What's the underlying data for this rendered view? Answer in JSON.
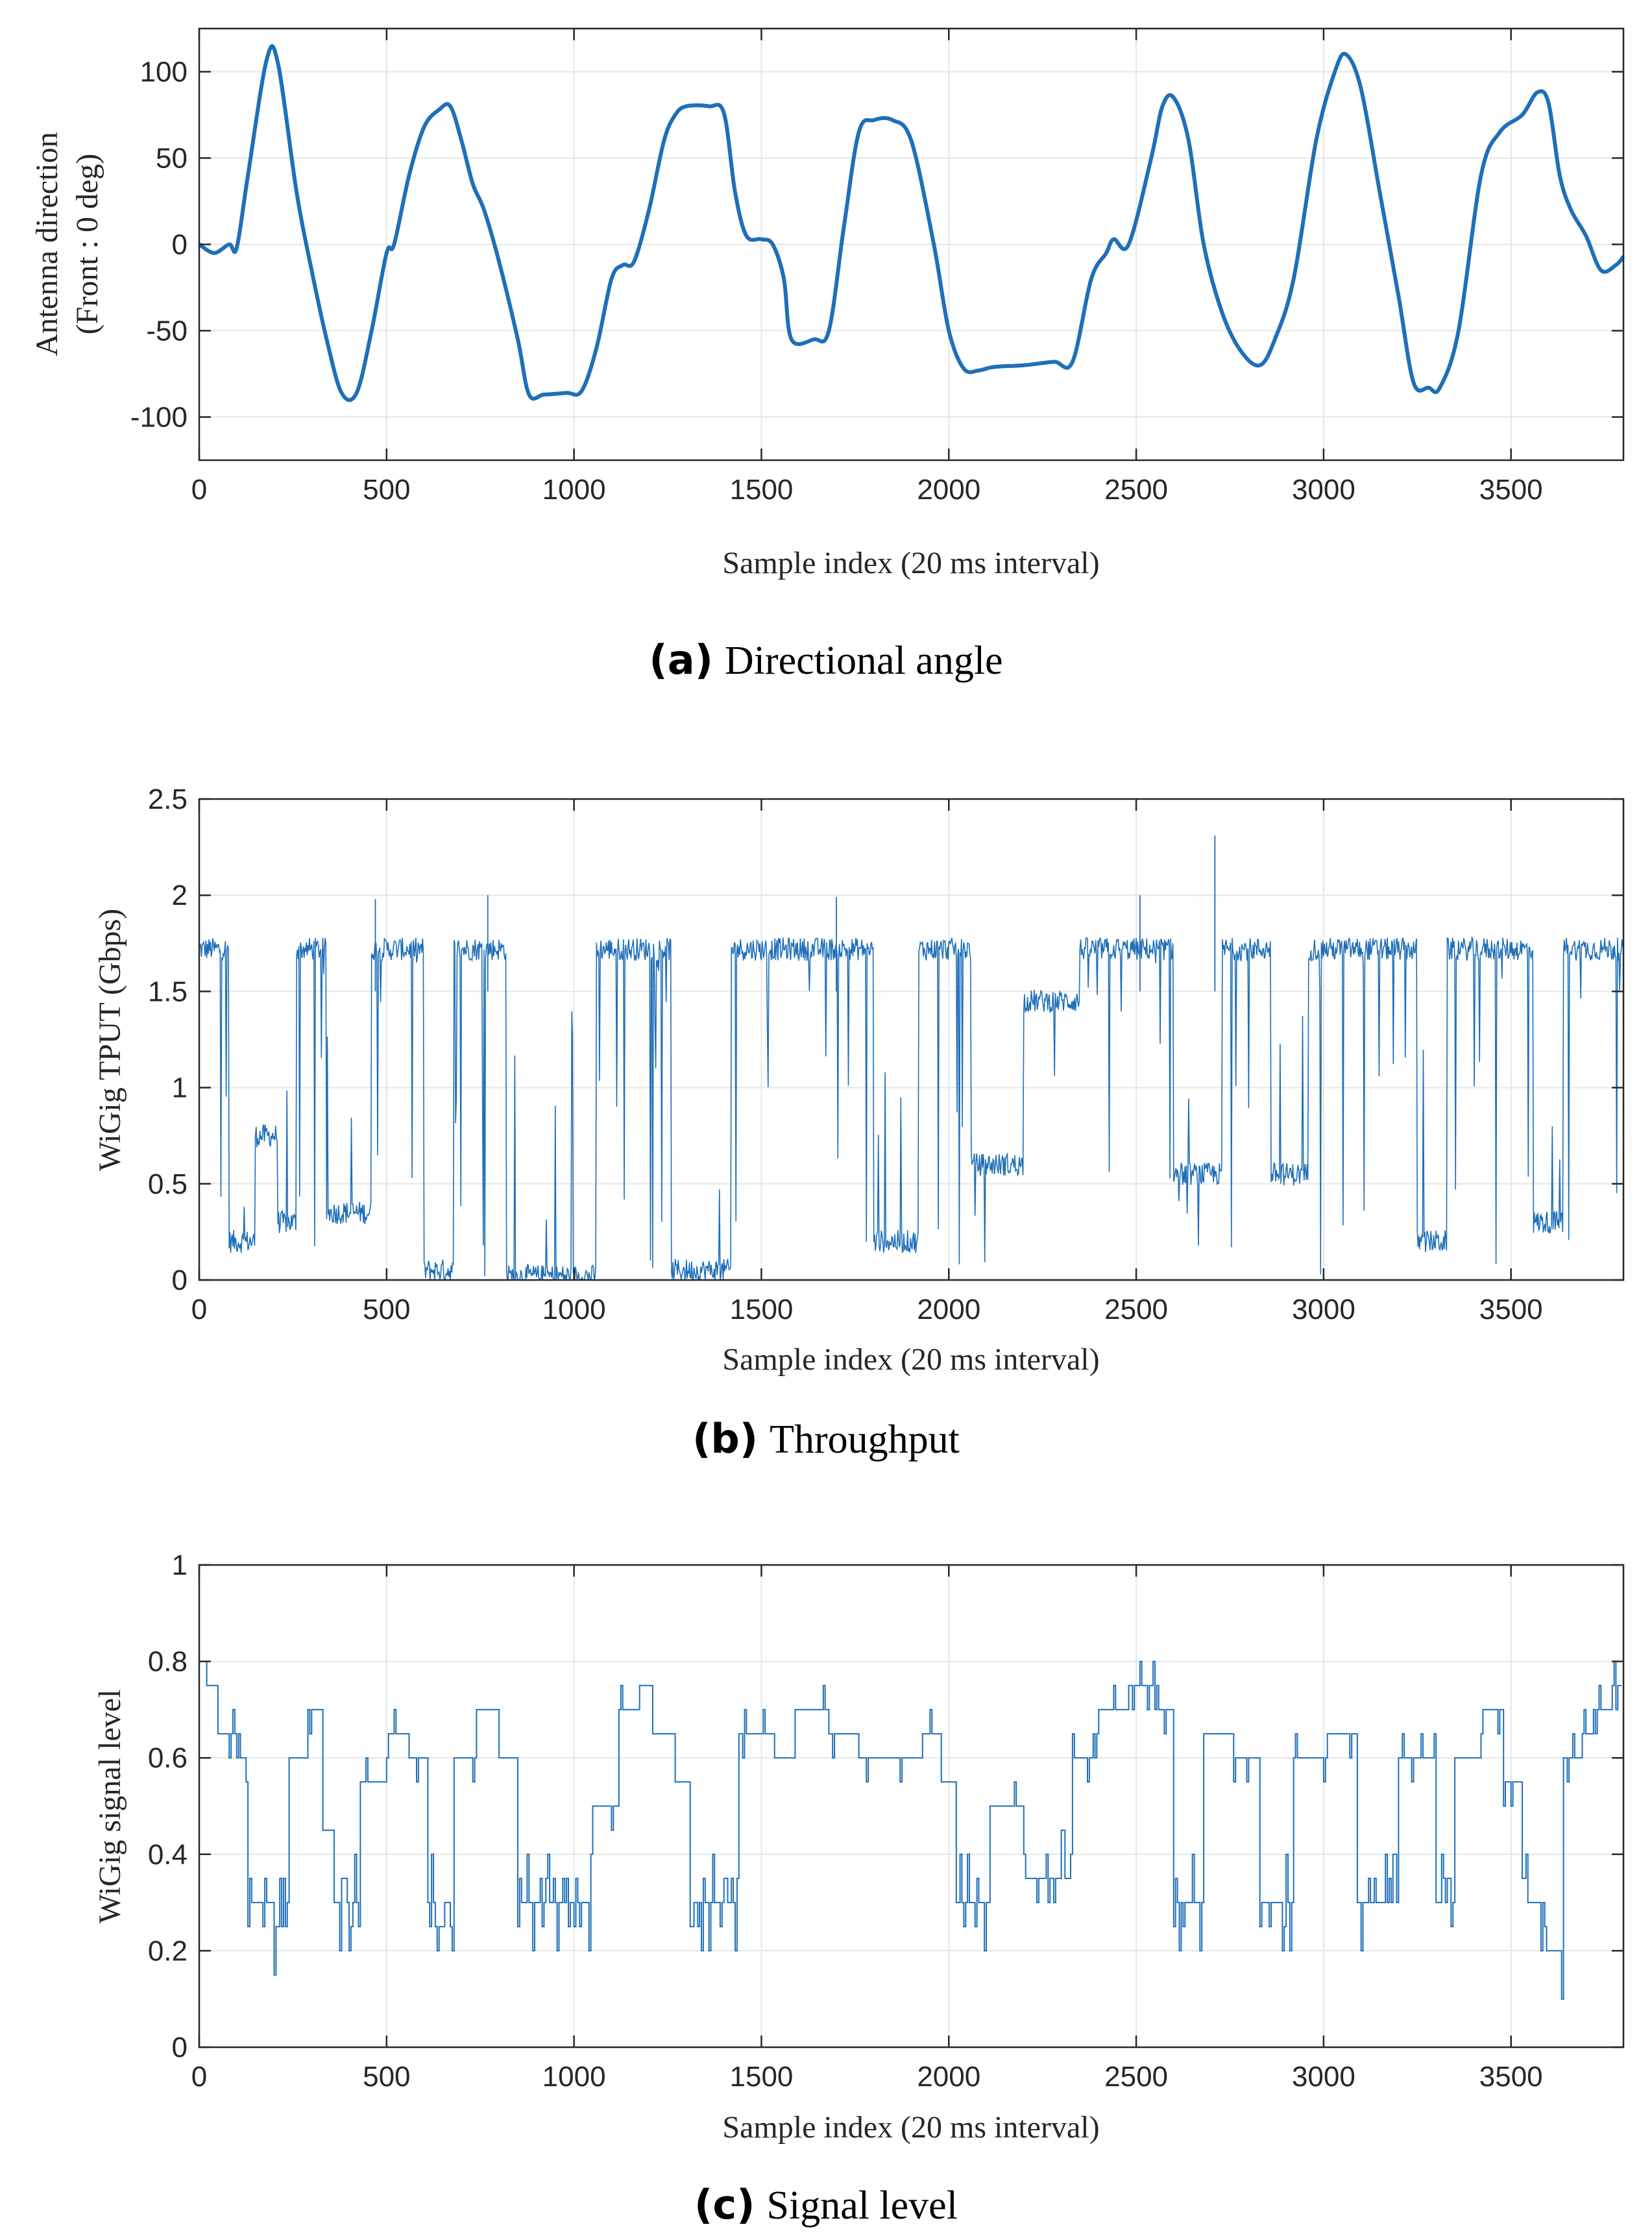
{
  "colors": {
    "line": "#1f6fb8",
    "grid": "#e6e6e6",
    "axis": "#262626"
  },
  "chart_data": [
    {
      "type": "line",
      "caption_letter": "(a)",
      "caption_text": "Directional angle",
      "title": "",
      "xlabel": "Sample index (20 ms interval)",
      "ylabel": "Antenna direction",
      "ylabel2": "(Front : 0 deg)",
      "xlim": [
        0,
        3800
      ],
      "ylim": [
        -125,
        125
      ],
      "xticks": [
        0,
        500,
        1000,
        1500,
        2000,
        2500,
        3000,
        3500
      ],
      "xtick_labels": [
        "0",
        "500",
        "1000",
        "1500",
        "2000",
        "2500",
        "3000",
        "3500"
      ],
      "yticks": [
        -100,
        -50,
        0,
        50,
        100
      ],
      "ytick_labels": [
        "-100",
        "-50",
        "0",
        "50",
        "100"
      ],
      "grid": true,
      "series": [
        {
          "name": "Antenna direction",
          "x": [
            0,
            40,
            80,
            100,
            130,
            180,
            210,
            260,
            300,
            340,
            380,
            420,
            460,
            500,
            520,
            560,
            600,
            640,
            670,
            700,
            730,
            760,
            800,
            850,
            880,
            920,
            980,
            1020,
            1060,
            1100,
            1130,
            1160,
            1200,
            1240,
            1270,
            1300,
            1360,
            1400,
            1430,
            1460,
            1500,
            1530,
            1560,
            1580,
            1640,
            1680,
            1720,
            1760,
            1800,
            1850,
            1900,
            1960,
            2000,
            2040,
            2080,
            2120,
            2200,
            2280,
            2330,
            2380,
            2420,
            2440,
            2480,
            2540,
            2570,
            2600,
            2640,
            2680,
            2730,
            2780,
            2830,
            2870,
            2920,
            2980,
            3030,
            3060,
            3100,
            3150,
            3200,
            3240,
            3280,
            3310,
            3360,
            3420,
            3470,
            3530,
            3570,
            3600,
            3630,
            3660,
            3700,
            3740,
            3780,
            3800
          ],
          "y": [
            0,
            -5,
            0,
            -2,
            40,
            107,
            105,
            30,
            -15,
            -55,
            -86,
            -86,
            -50,
            -5,
            0,
            40,
            68,
            78,
            80,
            60,
            35,
            20,
            -10,
            -55,
            -87,
            -87,
            -86,
            -85,
            -60,
            -20,
            -12,
            -10,
            20,
            60,
            75,
            80,
            80,
            76,
            30,
            5,
            3,
            0,
            -20,
            -55,
            -55,
            -50,
            10,
            65,
            72,
            72,
            60,
            0,
            -50,
            -72,
            -73,
            -71,
            -70,
            -68,
            -68,
            -20,
            -5,
            3,
            0,
            50,
            80,
            85,
            60,
            0,
            -40,
            -62,
            -70,
            -55,
            -20,
            60,
            100,
            110,
            90,
            30,
            -30,
            -80,
            -83,
            -83,
            -50,
            40,
            65,
            75,
            88,
            82,
            40,
            20,
            5,
            -15,
            -12,
            -7
          ],
          "linewidth": "thick"
        }
      ]
    },
    {
      "type": "line",
      "caption_letter": "(b)",
      "caption_text": "Throughput",
      "title": "",
      "xlabel": "Sample index (20 ms interval)",
      "ylabel": "WiGig TPUT (Gbps)",
      "xlim": [
        0,
        3800
      ],
      "ylim": [
        0,
        2.5
      ],
      "xticks": [
        0,
        500,
        1000,
        1500,
        2000,
        2500,
        3000,
        3500
      ],
      "xtick_labels": [
        "0",
        "500",
        "1000",
        "1500",
        "2000",
        "2500",
        "3000",
        "3500"
      ],
      "yticks": [
        0,
        0.5,
        1,
        1.5,
        2,
        2.5
      ],
      "ytick_labels": [
        "0",
        "0.5",
        "1",
        "1.5",
        "2",
        "2.5"
      ],
      "grid": true,
      "series": [
        {
          "name": "WiGig TPUT",
          "segment_levels": [
            [
              0,
              80,
              1.72
            ],
            [
              80,
              150,
              0.2
            ],
            [
              150,
              210,
              0.75
            ],
            [
              210,
              260,
              0.3
            ],
            [
              260,
              340,
              1.72
            ],
            [
              340,
              460,
              0.35
            ],
            [
              460,
              600,
              1.72
            ],
            [
              600,
              680,
              0.05
            ],
            [
              680,
              820,
              1.72
            ],
            [
              820,
              1060,
              0.02
            ],
            [
              1060,
              1260,
              1.72
            ],
            [
              1260,
              1420,
              0.05
            ],
            [
              1420,
              1800,
              1.72
            ],
            [
              1800,
              1920,
              0.2
            ],
            [
              1920,
              2060,
              1.72
            ],
            [
              2060,
              2200,
              0.6
            ],
            [
              2200,
              2350,
              1.45
            ],
            [
              2350,
              2600,
              1.72
            ],
            [
              2600,
              2730,
              0.55
            ],
            [
              2730,
              2860,
              1.72
            ],
            [
              2860,
              2960,
              0.55
            ],
            [
              2960,
              3100,
              1.72
            ],
            [
              3100,
              3250,
              1.72
            ],
            [
              3250,
              3330,
              0.2
            ],
            [
              3330,
              3400,
              1.72
            ],
            [
              3400,
              3560,
              1.72
            ],
            [
              3560,
              3640,
              0.3
            ],
            [
              3640,
              3800,
              1.72
            ]
          ],
          "notable_peaks": [
            [
              470,
              1.98
            ],
            [
              770,
              2.0
            ],
            [
              1700,
              1.99
            ],
            [
              2510,
              2.0
            ],
            [
              2710,
              2.31
            ]
          ],
          "linewidth": "thin"
        }
      ]
    },
    {
      "type": "line",
      "caption_letter": "(c)",
      "caption_text": "Signal level",
      "title": "",
      "xlabel": "Sample index (20 ms interval)",
      "ylabel": "WiGig signal level",
      "xlim": [
        0,
        3800
      ],
      "ylim": [
        0,
        1
      ],
      "xticks": [
        0,
        500,
        1000,
        1500,
        2000,
        2500,
        3000,
        3500
      ],
      "xtick_labels": [
        "0",
        "500",
        "1000",
        "1500",
        "2000",
        "2500",
        "3000",
        "3500"
      ],
      "yticks": [
        0,
        0.2,
        0.4,
        0.6,
        0.8,
        1
      ],
      "ytick_labels": [
        "0",
        "0.2",
        "0.4",
        "0.6",
        "0.8",
        "1"
      ],
      "grid": true,
      "series": [
        {
          "name": "WiGig signal level",
          "segment_levels": [
            [
              0,
              20,
              0.8
            ],
            [
              20,
              50,
              0.75
            ],
            [
              50,
              100,
              0.65
            ],
            [
              100,
              130,
              0.6
            ],
            [
              130,
              200,
              0.3
            ],
            [
              200,
              240,
              0.25
            ],
            [
              240,
              290,
              0.6
            ],
            [
              290,
              330,
              0.7
            ],
            [
              330,
              360,
              0.45
            ],
            [
              360,
              430,
              0.3
            ],
            [
              430,
              500,
              0.55
            ],
            [
              500,
              560,
              0.65
            ],
            [
              560,
              610,
              0.6
            ],
            [
              610,
              680,
              0.3
            ],
            [
              680,
              740,
              0.6
            ],
            [
              740,
              800,
              0.7
            ],
            [
              800,
              850,
              0.6
            ],
            [
              850,
              1050,
              0.3
            ],
            [
              1050,
              1120,
              0.5
            ],
            [
              1120,
              1170,
              0.7
            ],
            [
              1170,
              1210,
              0.75
            ],
            [
              1210,
              1270,
              0.65
            ],
            [
              1270,
              1310,
              0.55
            ],
            [
              1310,
              1440,
              0.3
            ],
            [
              1440,
              1530,
              0.65
            ],
            [
              1530,
              1590,
              0.6
            ],
            [
              1590,
              1680,
              0.7
            ],
            [
              1680,
              1760,
              0.65
            ],
            [
              1760,
              1820,
              0.6
            ],
            [
              1820,
              1930,
              0.6
            ],
            [
              1930,
              1980,
              0.65
            ],
            [
              1980,
              2020,
              0.55
            ],
            [
              2020,
              2110,
              0.3
            ],
            [
              2110,
              2200,
              0.5
            ],
            [
              2200,
              2330,
              0.35
            ],
            [
              2330,
              2400,
              0.6
            ],
            [
              2400,
              2480,
              0.7
            ],
            [
              2480,
              2550,
              0.75
            ],
            [
              2550,
              2600,
              0.7
            ],
            [
              2600,
              2680,
              0.3
            ],
            [
              2680,
              2760,
              0.65
            ],
            [
              2760,
              2830,
              0.6
            ],
            [
              2830,
              2920,
              0.3
            ],
            [
              2920,
              3010,
              0.6
            ],
            [
              3010,
              3090,
              0.65
            ],
            [
              3090,
              3200,
              0.3
            ],
            [
              3200,
              3300,
              0.6
            ],
            [
              3300,
              3350,
              0.3
            ],
            [
              3350,
              3420,
              0.6
            ],
            [
              3420,
              3480,
              0.7
            ],
            [
              3480,
              3530,
              0.55
            ],
            [
              3530,
              3580,
              0.3
            ],
            [
              3580,
              3640,
              0.2
            ],
            [
              3640,
              3690,
              0.6
            ],
            [
              3690,
              3730,
              0.65
            ],
            [
              3730,
              3770,
              0.7
            ],
            [
              3770,
              3800,
              0.75
            ]
          ],
          "linewidth": "thin"
        }
      ]
    }
  ]
}
